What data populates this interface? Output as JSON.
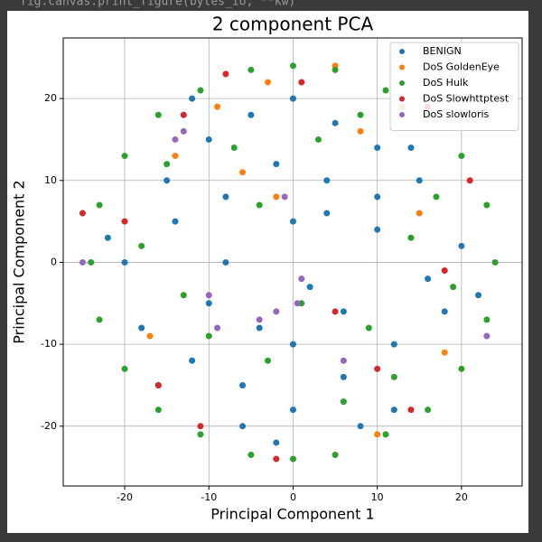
{
  "notebook_output": {
    "code_line": "fig.canvas.print_figure(bytes_io, **kw)"
  },
  "chart_data": {
    "type": "scatter",
    "title": "2 component PCA",
    "x_label": "Principal Component 1",
    "y_label": "Principal Component 2",
    "xlim": [
      -27.3,
      27.2
    ],
    "ylim": [
      -27.3,
      27.4
    ],
    "xticks": [
      -20,
      -10,
      0,
      10,
      20
    ],
    "yticks": [
      -20,
      -10,
      0,
      10,
      20
    ],
    "grid": true,
    "legend_position": "upper right",
    "series": [
      {
        "name": "BENIGN",
        "color": "#1f77b4",
        "x": [
          -20,
          -15,
          -10,
          -5,
          0,
          5,
          10,
          15,
          20,
          -18,
          -12,
          -6,
          0,
          6,
          12,
          18,
          -14,
          -8,
          -2,
          4,
          10,
          16,
          -16,
          -10,
          -4,
          2,
          8,
          14,
          -12,
          -6,
          0,
          6,
          12,
          -8,
          -2,
          4,
          10,
          -22,
          22,
          0
        ],
        "y": [
          0,
          10,
          15,
          18,
          20,
          17,
          14,
          10,
          2,
          -8,
          -12,
          -15,
          -18,
          -14,
          -10,
          -6,
          5,
          8,
          12,
          6,
          4,
          -2,
          -15,
          -5,
          -8,
          -3,
          -20,
          14,
          20,
          -20,
          5,
          -6,
          -18,
          0,
          -22,
          10,
          8,
          3,
          -4,
          -10
        ]
      },
      {
        "name": "DoS GoldenEye",
        "color": "#ff7f0e",
        "x": [
          -14,
          -9,
          -6,
          -2,
          5,
          8,
          13,
          15,
          -17,
          10,
          -3,
          18
        ],
        "y": [
          13,
          19,
          11,
          8,
          24,
          16,
          19,
          6,
          -9,
          -21,
          22,
          -11
        ]
      },
      {
        "name": "DoS Hulk",
        "color": "#2ca02c",
        "x": [
          -24,
          -23,
          -20,
          -16,
          -11,
          -5,
          0,
          5,
          11,
          16,
          20,
          23,
          24,
          23,
          20,
          16,
          11,
          5,
          0,
          -5,
          -11,
          -16,
          -20,
          -23,
          -15,
          -7,
          3,
          9,
          14,
          -3,
          6,
          -10,
          17,
          -18,
          1,
          8,
          -13,
          12,
          -4,
          19
        ],
        "y": [
          0,
          7,
          13,
          18,
          21,
          23.5,
          24,
          23.5,
          21,
          18,
          13,
          7,
          0,
          -7,
          -13,
          -18,
          -21,
          -23.5,
          -24,
          -23.5,
          -21,
          -18,
          -13,
          -7,
          12,
          14,
          15,
          -8,
          3,
          -12,
          -17,
          -9,
          8,
          2,
          -5,
          18,
          -4,
          -14,
          7,
          -3
        ]
      },
      {
        "name": "DoS Slowhttptest",
        "color": "#d62728",
        "x": [
          -13,
          -8,
          1,
          16,
          21,
          -20,
          -16,
          10,
          -11,
          -2,
          18,
          5,
          -25,
          14
        ],
        "y": [
          18,
          23,
          22,
          19,
          10,
          5,
          -15,
          -13,
          -20,
          -24,
          -1,
          -6,
          6,
          -18
        ]
      },
      {
        "name": "DoS slowloris",
        "color": "#9467bd",
        "x": [
          -10,
          -9,
          1,
          0.5,
          -1,
          -2,
          -4,
          -14,
          -13,
          23,
          -25,
          6
        ],
        "y": [
          -4,
          -8,
          -2,
          -5,
          8,
          -6,
          -7,
          15,
          16,
          -9,
          0,
          -12
        ]
      }
    ]
  }
}
